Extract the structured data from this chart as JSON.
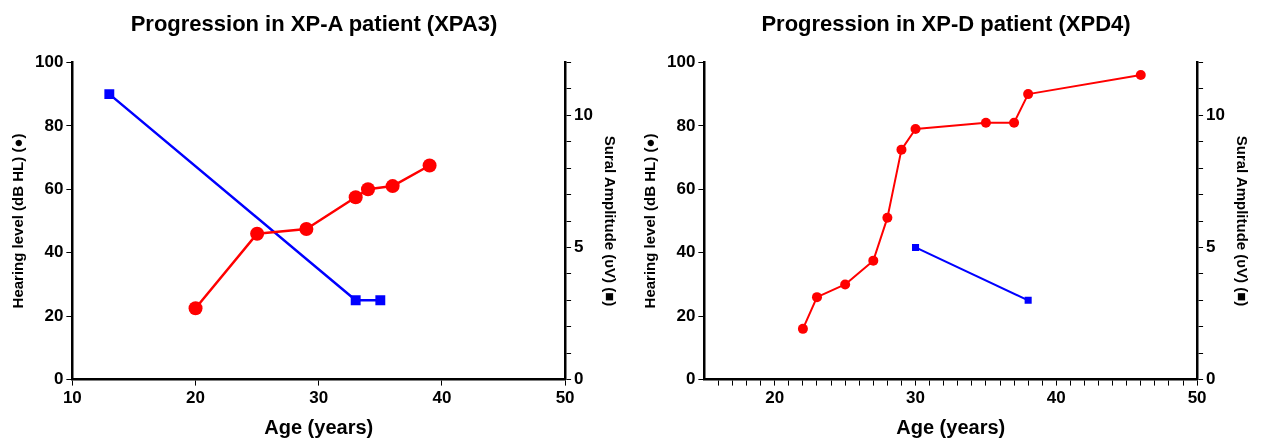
{
  "chart_data": [
    {
      "type": "line",
      "title": "Progression in XP-A patient (XPA3)",
      "xlabel": "Age (years)",
      "ylabel": "Hearing level (dB HL) (●)",
      "y2label": "Sural Amplitude (υV) (■)",
      "grid": false,
      "legend": false,
      "xlim": [
        10,
        50
      ],
      "xticks": [
        10,
        20,
        30,
        40,
        50
      ],
      "ylim": [
        0,
        100
      ],
      "yticks": [
        0,
        20,
        40,
        60,
        80,
        100
      ],
      "y2lim": [
        0,
        12
      ],
      "y2ticks": [
        0,
        {
          "value": 1,
          "label": null
        },
        {
          "value": 2,
          "label": null
        },
        {
          "value": 3,
          "label": null
        },
        {
          "value": 4,
          "label": null
        },
        5,
        {
          "value": 6,
          "label": null
        },
        {
          "value": 7,
          "label": null
        },
        {
          "value": 8,
          "label": null
        },
        {
          "value": 9,
          "label": null
        },
        10,
        {
          "value": 11,
          "label": null
        },
        {
          "value": 12,
          "label": null
        }
      ],
      "series": [
        {
          "color": "#ff0000",
          "marker": "circle",
          "x": [
            20,
            25,
            29,
            33,
            34,
            36,
            39
          ],
          "values": [
            22.5,
            46,
            47.5,
            57.5,
            60,
            61,
            67.5
          ]
        },
        {
          "color": "#0000ff",
          "marker": "square",
          "axis": "y2",
          "x": [
            13,
            33,
            35
          ],
          "values": [
            10.8,
            3,
            3
          ]
        }
      ]
    },
    {
      "type": "line",
      "title": "Progression in XP-D patient (XPD4)",
      "xlabel": "Age (years)",
      "ylabel": "Hearing level (dB HL) (●)",
      "y2label": "Sural Amplitude (υV) (■)",
      "grid": false,
      "legend": false,
      "xlim": [
        15,
        50
      ],
      "xticks": [
        {
          "value": 16,
          "label": null
        },
        {
          "value": 17,
          "label": null
        },
        {
          "value": 18,
          "label": null
        },
        {
          "value": 19,
          "label": null
        },
        20,
        {
          "value": 21,
          "label": null
        },
        {
          "value": 22,
          "label": null
        },
        {
          "value": 23,
          "label": null
        },
        {
          "value": 24,
          "label": null
        },
        {
          "value": 25,
          "label": null
        },
        {
          "value": 26,
          "label": null
        },
        {
          "value": 27,
          "label": null
        },
        {
          "value": 28,
          "label": null
        },
        {
          "value": 29,
          "label": null
        },
        30,
        {
          "value": 31,
          "label": null
        },
        {
          "value": 32,
          "label": null
        },
        {
          "value": 33,
          "label": null
        },
        {
          "value": 34,
          "label": null
        },
        {
          "value": 35,
          "label": null
        },
        {
          "value": 36,
          "label": null
        },
        {
          "value": 37,
          "label": null
        },
        {
          "value": 38,
          "label": null
        },
        {
          "value": 39,
          "label": null
        },
        40,
        {
          "value": 41,
          "label": null
        },
        {
          "value": 42,
          "label": null
        },
        {
          "value": 43,
          "label": null
        },
        {
          "value": 44,
          "label": null
        },
        {
          "value": 45,
          "label": null
        },
        {
          "value": 46,
          "label": null
        },
        {
          "value": 47,
          "label": null
        },
        {
          "value": 48,
          "label": null
        },
        {
          "value": 49,
          "label": null
        },
        50
      ],
      "ylim": [
        0,
        100
      ],
      "yticks": [
        0,
        20,
        40,
        60,
        80,
        100
      ],
      "y2lim": [
        0,
        12
      ],
      "y2ticks": [
        0,
        {
          "value": 1,
          "label": null
        },
        {
          "value": 2,
          "label": null
        },
        {
          "value": 3,
          "label": null
        },
        {
          "value": 4,
          "label": null
        },
        5,
        {
          "value": 6,
          "label": null
        },
        {
          "value": 7,
          "label": null
        },
        {
          "value": 8,
          "label": null
        },
        {
          "value": 9,
          "label": null
        },
        10,
        {
          "value": 11,
          "label": null
        },
        {
          "value": 12,
          "label": null
        }
      ],
      "series": [
        {
          "color": "#ff0000",
          "marker": "circle",
          "x": [
            22,
            23,
            25,
            27,
            28,
            29,
            30,
            35,
            37,
            38,
            46
          ],
          "values": [
            16,
            26,
            30,
            37.5,
            51,
            72.5,
            79,
            81,
            81,
            90,
            96
          ]
        },
        {
          "color": "#0000ff",
          "marker": "square",
          "axis": "y2",
          "x": [
            30,
            38
          ],
          "values": [
            5,
            3
          ]
        }
      ]
    }
  ]
}
